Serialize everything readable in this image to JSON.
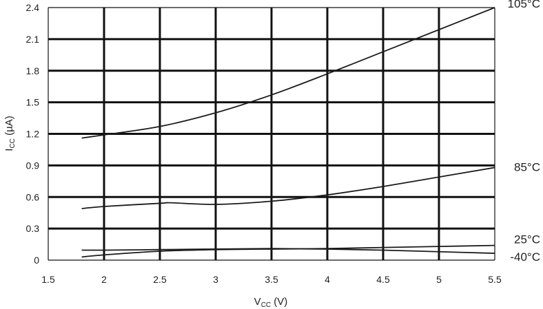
{
  "chart_data": {
    "type": "line",
    "xlabel": {
      "main": "V",
      "sub": "CC",
      "unit": " (V)"
    },
    "ylabel": {
      "main": "I",
      "sub": "CC",
      "unit": " (µA)"
    },
    "xlim": [
      1.5,
      5.5
    ],
    "ylim": [
      0,
      2.4
    ],
    "x_ticks": [
      "1.5",
      "2",
      "2.5",
      "3",
      "3.5",
      "4",
      "4.5",
      "5",
      "5.5"
    ],
    "y_ticks": [
      "0",
      "0.3",
      "0.6",
      "0.9",
      "1.2",
      "1.5",
      "1.8",
      "2.1",
      "2.4"
    ],
    "grid": true,
    "series": [
      {
        "name": "105°C",
        "x": [
          1.8,
          2.0,
          2.5,
          3.0,
          3.5,
          4.0,
          4.5,
          5.0,
          5.5
        ],
        "values": [
          1.16,
          1.19,
          1.27,
          1.4,
          1.57,
          1.77,
          1.98,
          2.19,
          2.4
        ]
      },
      {
        "name": "85°C",
        "x": [
          1.8,
          2.0,
          2.5,
          2.6,
          3.0,
          3.5,
          4.0,
          4.5,
          5.0,
          5.5
        ],
        "values": [
          0.49,
          0.51,
          0.54,
          0.545,
          0.53,
          0.56,
          0.62,
          0.7,
          0.79,
          0.88
        ]
      },
      {
        "name": "25°C",
        "x": [
          1.8,
          2.0,
          2.5,
          3.0,
          3.5,
          4.0,
          4.5,
          5.0,
          5.5
        ],
        "values": [
          0.03,
          0.05,
          0.085,
          0.1,
          0.105,
          0.11,
          0.12,
          0.13,
          0.14
        ]
      },
      {
        "name": "-40°C",
        "x": [
          1.8,
          2.0,
          2.5,
          3.0,
          3.5,
          4.0,
          4.5,
          5.0,
          5.5
        ],
        "values": [
          0.095,
          0.095,
          0.1,
          0.105,
          0.11,
          0.105,
          0.095,
          0.08,
          0.065
        ]
      }
    ]
  }
}
